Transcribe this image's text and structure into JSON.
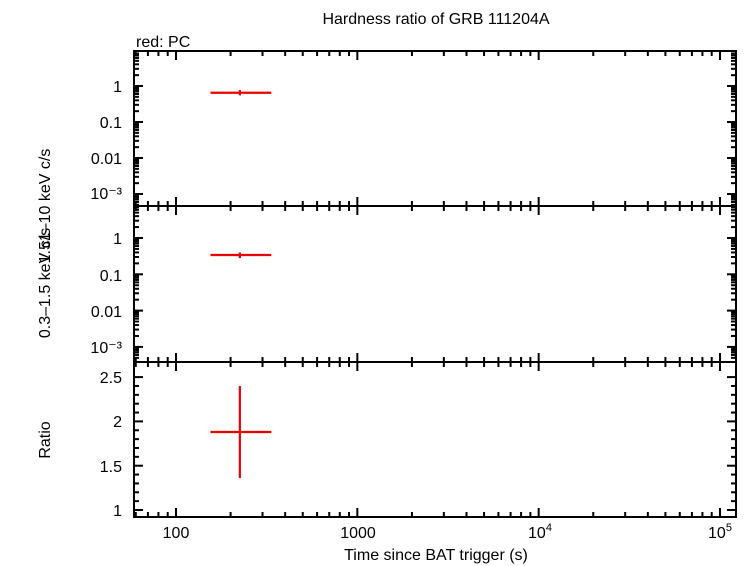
{
  "title": "Hardness ratio of GRB 111204A",
  "legend": "red: PC",
  "xlabel": "Time since BAT trigger (s)",
  "colors": {
    "series": "#ee0000",
    "axes": "#000000"
  },
  "chart_data": [
    {
      "type": "scatter",
      "panel": "hard band",
      "ylabel": "1.51–10 keV c/s",
      "yscale": "log",
      "ylim": [
        0.0003,
        5
      ],
      "xscale": "log",
      "xlim": [
        60,
        120000
      ],
      "ytick_labels": [
        "1",
        "0.1",
        "0.01",
        "10⁻³"
      ],
      "series": [
        {
          "name": "PC",
          "points": [
            {
              "x": 225,
              "xerr": [
                155,
                335
              ],
              "y": 0.65,
              "yerr": [
                0.55,
                0.77
              ]
            }
          ]
        }
      ]
    },
    {
      "type": "scatter",
      "panel": "soft band",
      "ylabel": "0.3–1.5 keV c/s",
      "yscale": "log",
      "ylim": [
        0.0003,
        5
      ],
      "xscale": "log",
      "xlim": [
        60,
        120000
      ],
      "ytick_labels": [
        "1",
        "0.1",
        "0.01",
        "10⁻³"
      ],
      "series": [
        {
          "name": "PC",
          "points": [
            {
              "x": 225,
              "xerr": [
                155,
                335
              ],
              "y": 0.34,
              "yerr": [
                0.28,
                0.4
              ]
            }
          ]
        }
      ]
    },
    {
      "type": "scatter",
      "panel": "ratio",
      "ylabel": "Ratio",
      "yscale": "linear",
      "ylim": [
        0.97,
        2.6
      ],
      "xscale": "log",
      "xlim": [
        60,
        120000
      ],
      "ytick_labels": [
        "1",
        "1.5",
        "2",
        "2.5"
      ],
      "series": [
        {
          "name": "PC",
          "points": [
            {
              "x": 225,
              "xerr": [
                155,
                335
              ],
              "y": 1.88,
              "yerr": [
                1.36,
                2.4
              ]
            }
          ]
        }
      ]
    }
  ],
  "xtick_labels": [
    "100",
    "1000",
    "10",
    "4",
    "10",
    "5"
  ]
}
